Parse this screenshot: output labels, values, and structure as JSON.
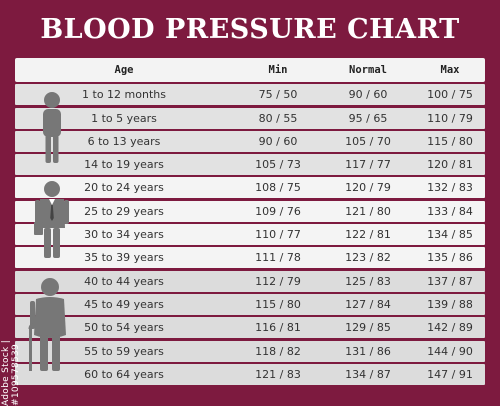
{
  "title": "BLOOD PRESSURE CHART",
  "side_label": "Adobe Stock | #109578539",
  "columns": [
    "Age",
    "Min",
    "Normal",
    "Max"
  ],
  "rows": [
    {
      "age": "1 to 12 months",
      "min": "75 / 50",
      "normal": "90 / 60",
      "max": "100 / 75",
      "group": 0
    },
    {
      "age": "1 to 5 years",
      "min": "80 / 55",
      "normal": "95 / 65",
      "max": "110 / 79",
      "group": 0
    },
    {
      "age": "6 to 13 years",
      "min": "90 / 60",
      "normal": "105 / 70",
      "max": "115 / 80",
      "group": 0
    },
    {
      "age": "14 to 19 years",
      "min": "105 / 73",
      "normal": "117 / 77",
      "max": "120 / 81",
      "group": 0
    },
    {
      "age": "20 to 24 years",
      "min": "108 / 75",
      "normal": "120 / 79",
      "max": "132 / 83",
      "group": 1
    },
    {
      "age": "25 to 29 years",
      "min": "109 / 76",
      "normal": "121 / 80",
      "max": "133 / 84",
      "group": 1
    },
    {
      "age": "30 to 34 years",
      "min": "110 / 77",
      "normal": "122 / 81",
      "max": "134 / 85",
      "group": 1
    },
    {
      "age": "35 to 39 years",
      "min": "111 / 78",
      "normal": "123 / 82",
      "max": "135 / 86",
      "group": 1
    },
    {
      "age": "40 to 44 years",
      "min": "112 / 79",
      "normal": "125 / 83",
      "max": "137 / 87",
      "group": 2
    },
    {
      "age": "45 to 49 years",
      "min": "115 / 80",
      "normal": "127 / 84",
      "max": "139 / 88",
      "group": 2
    },
    {
      "age": "50 to 54 years",
      "min": "116 / 81",
      "normal": "129 / 85",
      "max": "142 / 89",
      "group": 2
    },
    {
      "age": "55 to 59 years",
      "min": "118 / 82",
      "normal": "131 / 86",
      "max": "144 / 90",
      "group": 2
    },
    {
      "age": "60 to 64 years",
      "min": "121 / 83",
      "normal": "134 / 87",
      "max": "147 / 91",
      "group": 2
    }
  ],
  "icons": [
    "child-icon",
    "businessman-icon",
    "elderly-man-with-cane-icon"
  ],
  "colors": {
    "background": "#7d1a3f",
    "header": "#f3f3f3",
    "row_light": "#f4f4f4",
    "row_mid": "#e2e2e2",
    "row_dark": "#dcdcdc",
    "icon": "#777777"
  }
}
